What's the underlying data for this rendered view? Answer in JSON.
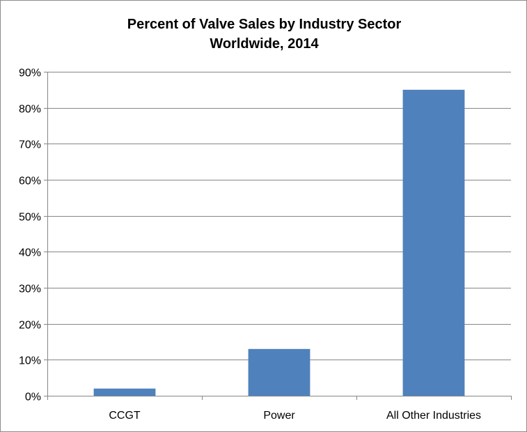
{
  "chart_data": {
    "type": "bar",
    "title": "Percent of Valve Sales by Industry Sector",
    "subtitle": "Worldwide, 2014",
    "categories": [
      "CCGT",
      "Power",
      "All Other Industries"
    ],
    "values": [
      2,
      13,
      85
    ],
    "yticks": [
      "0%",
      "10%",
      "20%",
      "30%",
      "40%",
      "50%",
      "60%",
      "70%",
      "80%",
      "90%"
    ],
    "ylim": [
      0,
      90
    ],
    "ystep": 10,
    "y_unit": "%",
    "xlabel": "",
    "ylabel": "",
    "grid": true,
    "legend": "none",
    "colors": {
      "bar": "#4f81bd",
      "grid": "#868686",
      "axis": "#868686"
    }
  }
}
